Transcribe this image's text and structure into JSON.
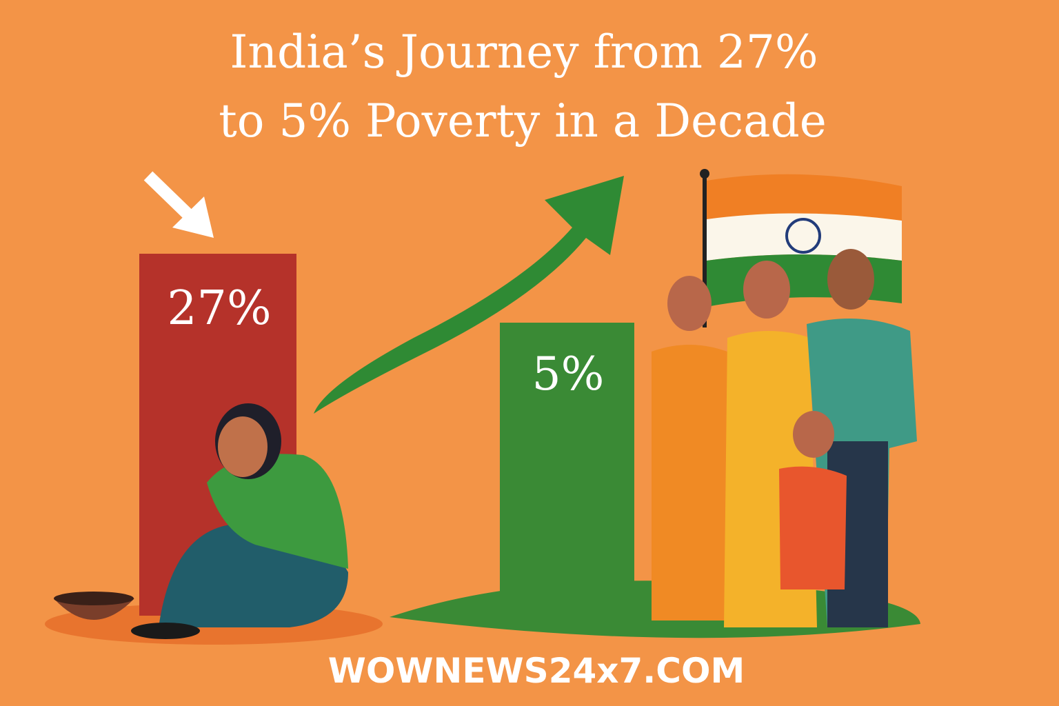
{
  "title": {
    "line1": "India’s Journey from 27%",
    "line2": "to 5% Poverty in a Decade"
  },
  "bars": [
    {
      "label": "27%"
    },
    {
      "label": "5%"
    }
  ],
  "footer": "WOWNEWS24x7.COM"
}
